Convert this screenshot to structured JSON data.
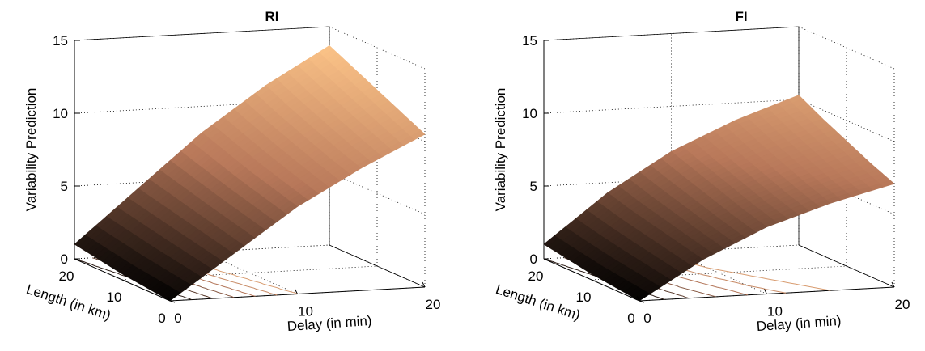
{
  "chart_data": [
    {
      "type": "surface",
      "title": "RI",
      "xlabel": "Delay (in min)",
      "ylabel": "Length (in km)",
      "zlabel": "Variability Prediction",
      "xlim": [
        0,
        20
      ],
      "ylim": [
        0,
        20
      ],
      "zlim": [
        0,
        15
      ],
      "xticks": [
        "0",
        "10",
        "20"
      ],
      "yticks": [
        "0",
        "10",
        "20"
      ],
      "zticks": [
        "0",
        "5",
        "10",
        "15"
      ],
      "grid": true,
      "contour_levels": [
        1,
        2,
        3,
        4,
        5,
        6
      ],
      "delay": [
        0,
        5,
        10,
        15,
        20
      ],
      "length": [
        0,
        5,
        10,
        15,
        20
      ],
      "z": [
        [
          0.0,
          3.0,
          6.0,
          8.4,
          10.5
        ],
        [
          0.2,
          3.4,
          6.5,
          9.0,
          11.3
        ],
        [
          0.4,
          3.8,
          7.0,
          9.7,
          12.1
        ],
        [
          0.7,
          4.2,
          7.6,
          10.4,
          12.9
        ],
        [
          1.0,
          4.6,
          8.2,
          11.2,
          13.7
        ]
      ]
    },
    {
      "type": "surface",
      "title": "FI",
      "xlabel": "Delay (in min)",
      "ylabel": "Length (in km)",
      "zlabel": "Variability Prediction",
      "xlim": [
        0,
        20
      ],
      "ylim": [
        0,
        20
      ],
      "zlim": [
        0,
        15
      ],
      "xticks": [
        "0",
        "10",
        "20"
      ],
      "yticks": [
        "0",
        "10",
        "20"
      ],
      "zticks": [
        "0",
        "5",
        "10",
        "15"
      ],
      "grid": true,
      "contour_levels": [
        1,
        2,
        3,
        4,
        5,
        6
      ],
      "delay": [
        0,
        5,
        10,
        15,
        20
      ],
      "length": [
        0,
        5,
        10,
        15,
        20
      ],
      "z": [
        [
          0.0,
          2.6,
          4.6,
          6.0,
          7.1
        ],
        [
          0.2,
          3.0,
          5.1,
          6.6,
          7.8
        ],
        [
          0.4,
          3.4,
          5.7,
          7.3,
          8.6
        ],
        [
          0.7,
          3.8,
          6.3,
          8.0,
          9.4
        ],
        [
          1.0,
          4.3,
          6.9,
          8.8,
          10.3
        ]
      ]
    }
  ],
  "colormap": {
    "low": "#000000",
    "mid": "#b8785a",
    "high": "#ffc78a"
  }
}
